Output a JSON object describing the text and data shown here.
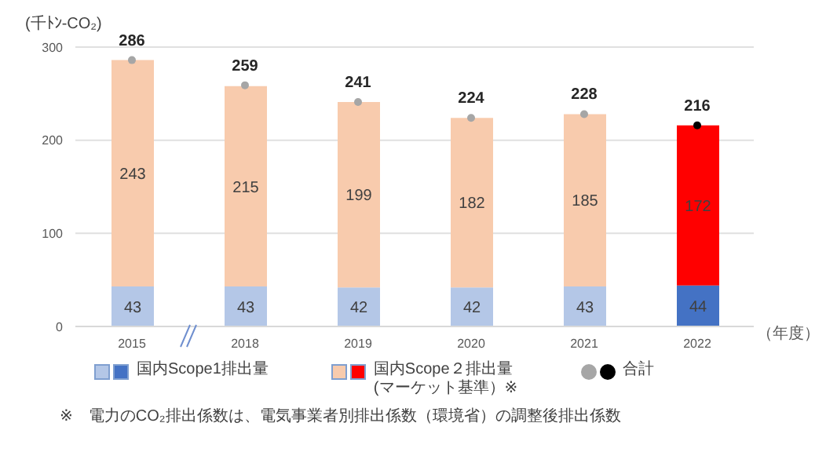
{
  "chart_data": {
    "type": "bar",
    "stacked": true,
    "ylabel": "(千ﾄﾝ-CO₂)",
    "xlabel": "（年度）",
    "categories": [
      "2015",
      "2018",
      "2019",
      "2020",
      "2021",
      "2022"
    ],
    "series": [
      {
        "name": "国内Scope1排出量",
        "colors": [
          "#b4c7e7",
          "#b4c7e7",
          "#b4c7e7",
          "#b4c7e7",
          "#b4c7e7",
          "#4472c4"
        ],
        "values": [
          43,
          43,
          42,
          42,
          43,
          44
        ]
      },
      {
        "name": "国内Scope２排出量\n(マーケット基準）※",
        "colors": [
          "#f8cbad",
          "#f8cbad",
          "#f8cbad",
          "#f8cbad",
          "#f8cbad",
          "#ff0000"
        ],
        "values": [
          243,
          215,
          199,
          182,
          185,
          172
        ]
      },
      {
        "name": "合計",
        "type": "scatter",
        "colors": [
          "#a6a6a6",
          "#a6a6a6",
          "#a6a6a6",
          "#a6a6a6",
          "#a6a6a6",
          "#000000"
        ],
        "values": [
          286,
          259,
          241,
          224,
          228,
          216
        ]
      }
    ],
    "ylim": [
      0,
      300
    ],
    "yticks": [
      0,
      100,
      200,
      300
    ],
    "grid": "y",
    "data_labels": true,
    "legend": "bottom",
    "annotations": [
      "※　電力のCO₂排出係数は、電気事業者別排出係数（環境省）の調整後排出係数"
    ]
  }
}
